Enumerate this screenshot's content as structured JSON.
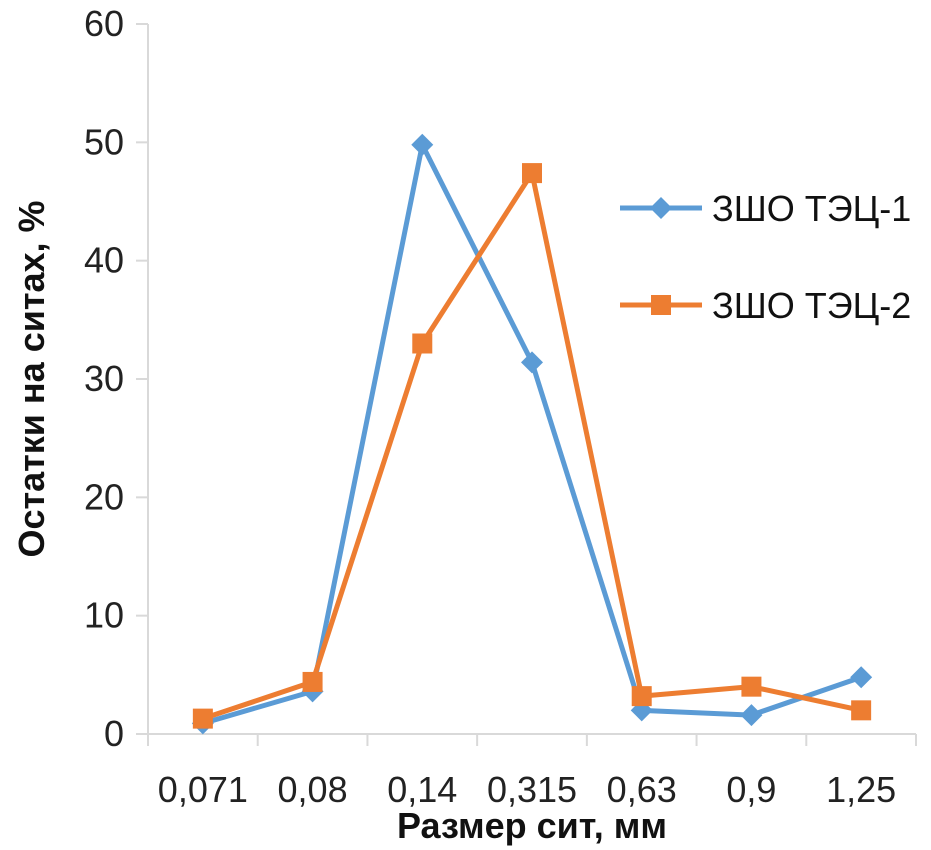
{
  "chart_data": {
    "type": "line",
    "title": "",
    "categories": [
      "0,071",
      "0,08",
      "0,14",
      "0,315",
      "0,63",
      "0,9",
      "1,25"
    ],
    "y_ticks": [
      "0",
      "10",
      "20",
      "30",
      "40",
      "50",
      "60"
    ],
    "ylim": [
      0,
      60
    ],
    "xlabel": "Размер сит, мм",
    "ylabel": "Остатки на ситах, %",
    "grid": false,
    "legend_position": "right",
    "series": [
      {
        "name": "ЗШО ТЭЦ-1",
        "marker": "diamond",
        "color": "#5B9BD5",
        "values": [
          0.9,
          3.6,
          49.8,
          31.4,
          2.0,
          1.6,
          4.8
        ]
      },
      {
        "name": "ЗШО ТЭЦ-2",
        "marker": "square",
        "color": "#ED7D31",
        "values": [
          1.3,
          4.4,
          33.0,
          47.4,
          3.2,
          4.0,
          2.0
        ]
      }
    ]
  }
}
